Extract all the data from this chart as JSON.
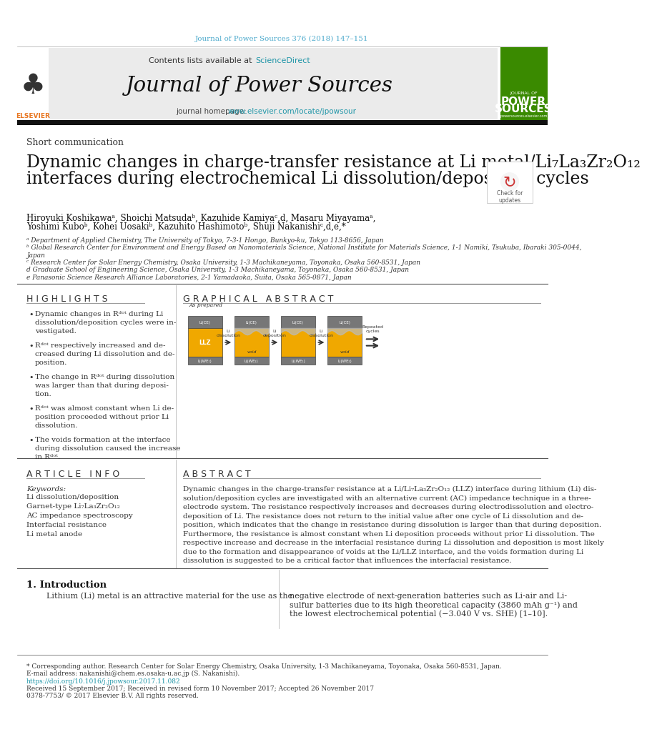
{
  "journal_ref": "Journal of Power Sources 376 (2018) 147–151",
  "contents_text": "Contents lists available at ",
  "science_direct": "ScienceDirect",
  "journal_name": "Journal of Power Sources",
  "journal_homepage_text": "journal homepage: ",
  "journal_url": "www.elsevier.com/locate/jpowsour",
  "article_type": "Short communication",
  "title_line1": "Dynamic changes in charge-transfer resistance at Li metal/Li₇La₃Zr₂O₁₂",
  "title_line2": "interfaces during electrochemical Li dissolution/deposition cycles",
  "authors": "Hiroyuki Koshikawaᵃ, Shoichi Matsudaᵇ, Kazuhide Kamiyaᶜ,d, Masaru Miyayamaᵃ,",
  "authors2": "Yoshimi Kuboᵇ, Kohei Uosakiᵇ, Kazuhito Hashimotoᵇ, Shuji Nakanishiᶜ,d,e,*",
  "affil_a": "ᵃ Department of Applied Chemistry, The University of Tokyo, 7-3-1 Hongo, Bunkyo-ku, Tokyo 113-8656, Japan",
  "affil_b": "ᵇ Global Research Center for Environment and Energy Based on Nanomaterials Science, National Institute for Materials Science, 1-1 Namiki, Tsukuba, Ibaraki 305-0044,",
  "affil_b2": "Japan",
  "affil_c": "ᶜ Research Center for Solar Energy Chemistry, Osaka University, 1-3 Machikaneyama, Toyonaka, Osaka 560-8531, Japan",
  "affil_d": "d Graduate School of Engineering Science, Osaka University, 1-3 Machikaneyama, Toyonaka, Osaka 560-8531, Japan",
  "affil_e": "e Panasonic Science Research Alliance Laboratories, 2-1 Yamadaoka, Suita, Osaka 565-0871, Japan",
  "highlights_title": "H I G H L I G H T S",
  "graphical_abstract_title": "G R A P H I C A L   A B S T R A C T",
  "article_info_title": "A R T I C L E   I N F O",
  "keywords_title": "Keywords:",
  "keywords": "Li dissolution/deposition\nGarnet-type Li₇La₃Zr₂O₁₂\nAC impedance spectroscopy\nInterfacial resistance\nLi metal anode",
  "abstract_title": "A B S T R A C T",
  "intro_title": "1. Introduction",
  "intro_text_left": "        Lithium (Li) metal is an attractive material for the use as the",
  "intro_text_right": "negative electrode of next-generation batteries such as Li-air and Li-\nsulfur batteries due to its high theoretical capacity (3860 mAh g⁻¹) and\nthe lowest electrochemical potential (−3.040 V vs. SHE) [1–10].",
  "footer_corr": "* Corresponding author. Research Center for Solar Energy Chemistry, Osaka University, 1-3 Machikaneyama, Toyonaka, Osaka 560-8531, Japan.",
  "footer_email": "E-mail address: nakanishi@chem.es.osaka-u.ac.jp (S. Nakanishi).",
  "doi_text": "https://doi.org/10.1016/j.jpowsour.2017.11.082",
  "received_text": "Received 15 September 2017; Received in revised form 10 November 2017; Accepted 26 November 2017",
  "issn_text": "0378-7753/ © 2017 Elsevier B.V. All rights reserved.",
  "color_cyan": "#4DAACC",
  "color_orange": "#E87722",
  "color_link": "#2196A8",
  "highlights": [
    "Dynamic changes in Rᵈᵒᵗ during Li\ndissolution/deposition cycles were in-\nvestigated.",
    "Rᵈᵒᵗ respectively increased and de-\ncreased during Li dissolution and de-\nposition.",
    "The change in Rᵈᵒᵗ during dissolution\nwas larger than that during deposi-\ntion.",
    "Rᵈᵒᵗ was almost constant when Li de-\nposition proceeded without prior Li\ndissolution.",
    "The voids formation at the interface\nduring dissolution caused the increase\nin Rᵈᵒᵗ."
  ],
  "abstract_text": "Dynamic changes in the charge-transfer resistance at a Li/Li₇La₃Zr₂O₁₂ (LLZ) interface during lithium (Li) dis-\nsolution/deposition cycles are investigated with an alternative current (AC) impedance technique in a three-\nelectrode system. The resistance respectively increases and decreases during electrodissolution and electro-\ndeposition of Li. The resistance does not return to the initial value after one cycle of Li dissolution and de-\nposition, which indicates that the change in resistance during dissolution is larger than that during deposition.\nFurthermore, the resistance is almost constant when Li deposition proceeds without prior Li dissolution. The\nrespective increase and decrease in the interfacial resistance during Li dissolution and deposition is most likely\ndue to the formation and disappearance of voids at the Li/LLZ interface, and the voids formation during Li\ndissolution is suggested to be a critical factor that influences the interfacial resistance."
}
